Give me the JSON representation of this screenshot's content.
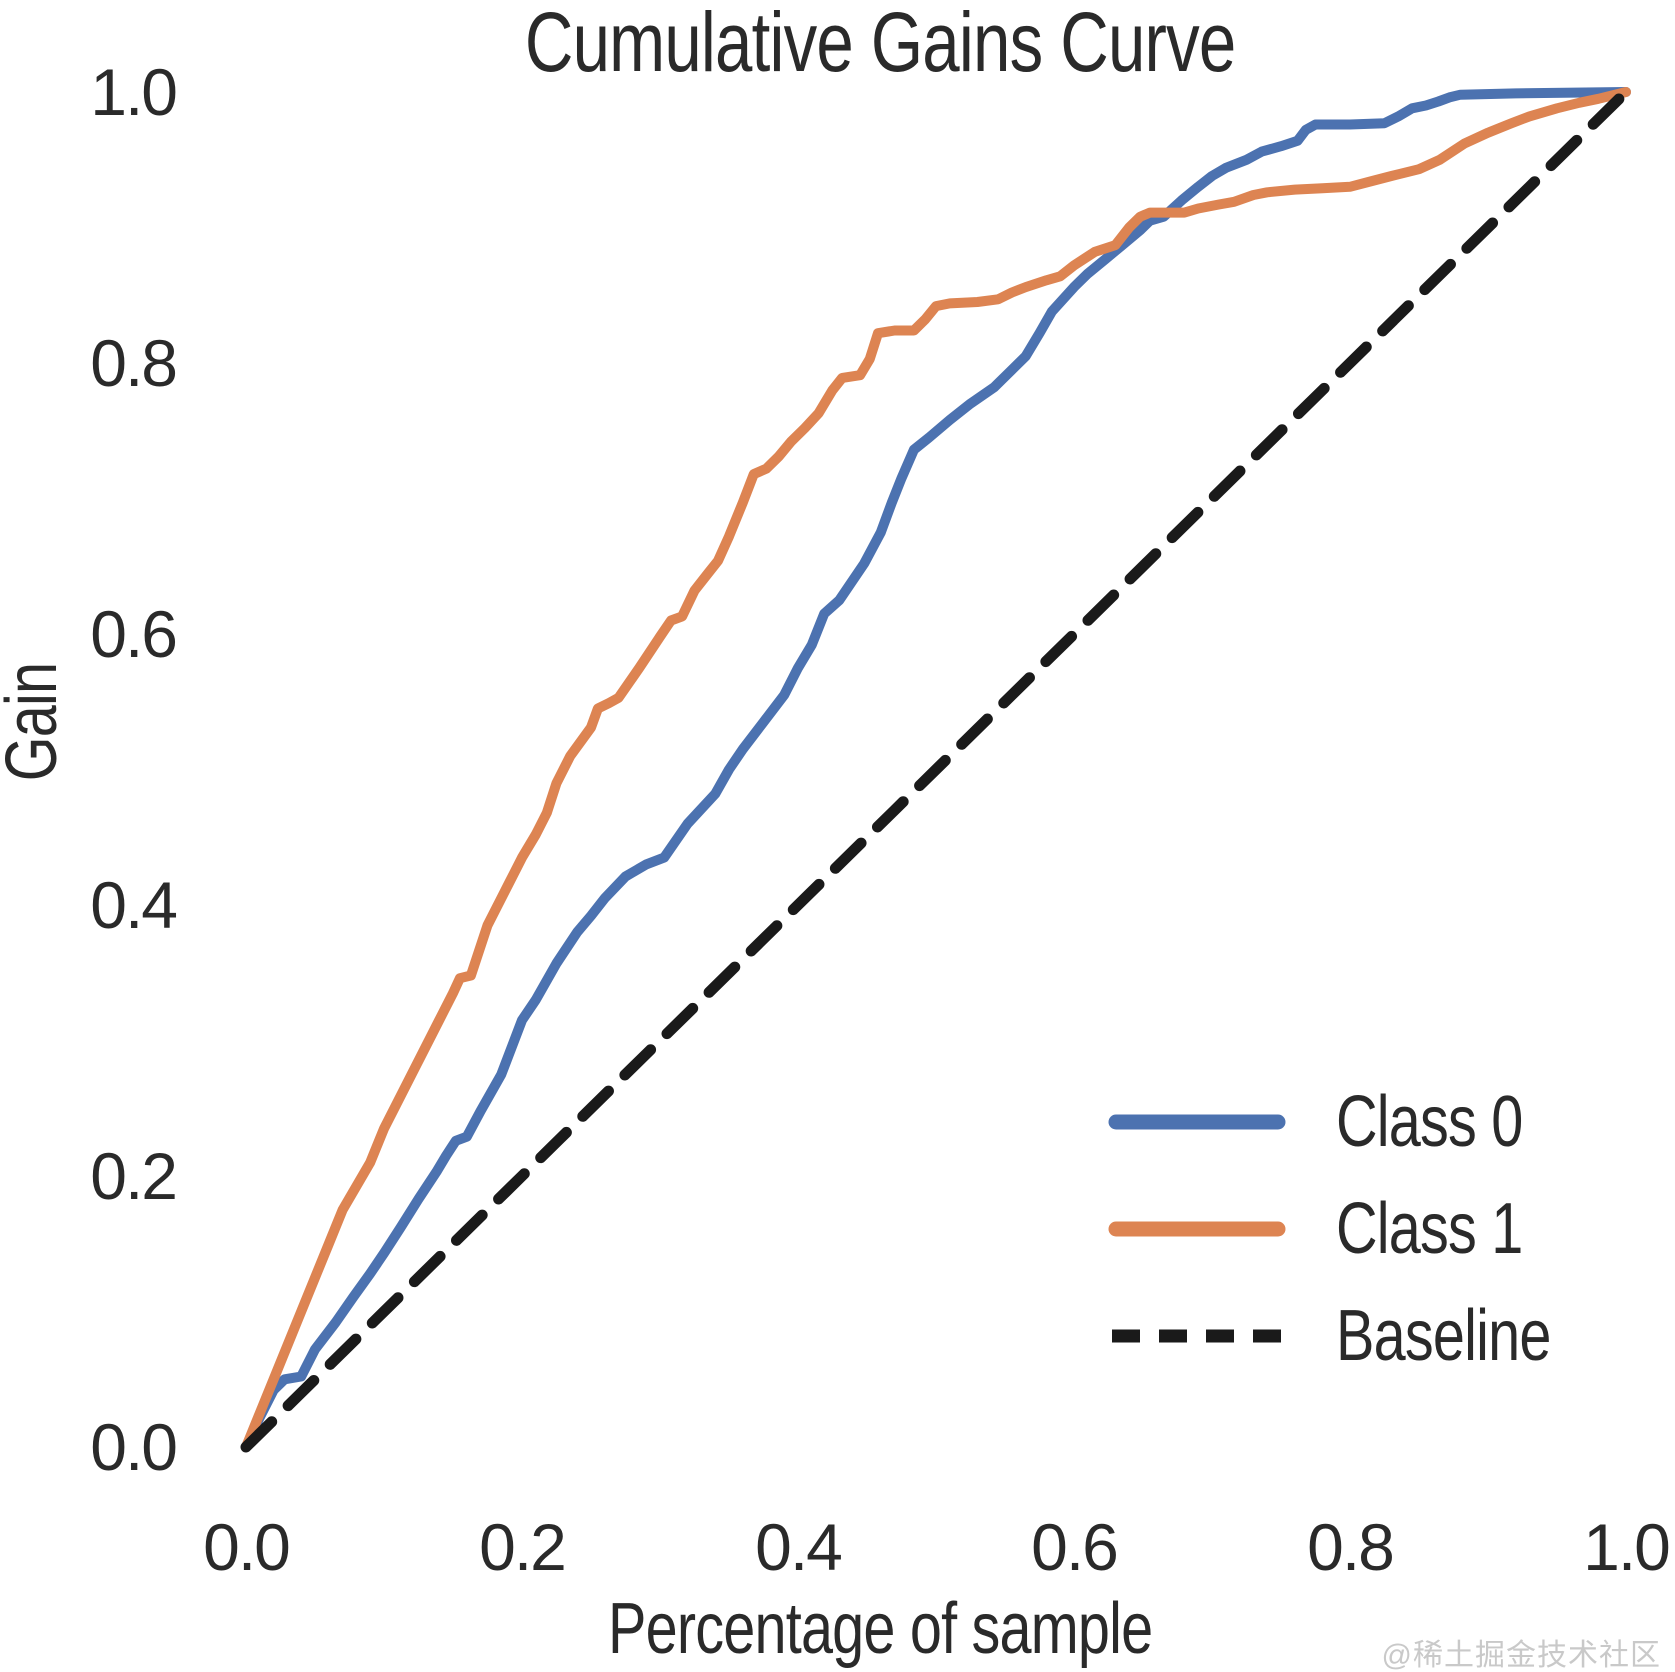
{
  "title": "Cumulative Gains Curve",
  "watermark": "@稀土掘金技术社区",
  "colors": {
    "class0": "#4C72B0",
    "class1": "#DD8452",
    "baseline": "#1a1a1a",
    "text": "#2a2a2a",
    "watermark": "#c9c9c9",
    "background": "#ffffff"
  },
  "chart_data": {
    "type": "line",
    "title": "Cumulative Gains Curve",
    "xlabel": "Percentage of sample",
    "ylabel": "Gain",
    "xlim": [
      0.0,
      1.0
    ],
    "ylim": [
      0.0,
      1.0
    ],
    "xticks": [
      0.0,
      0.2,
      0.4,
      0.6,
      0.8,
      1.0
    ],
    "yticks": [
      0.0,
      0.2,
      0.4,
      0.6,
      0.8,
      1.0
    ],
    "grid": false,
    "spines": false,
    "legend_position": "lower right",
    "series": [
      {
        "id": "class0",
        "name": "Class 0",
        "color": "#4C72B0",
        "style": "solid",
        "width": 10,
        "points": [
          [
            0,
            0
          ],
          [
            0.01,
            0.022
          ],
          [
            0.02,
            0.042
          ],
          [
            0.028,
            0.05
          ],
          [
            0.04,
            0.052
          ],
          [
            0.05,
            0.072
          ],
          [
            0.065,
            0.092
          ],
          [
            0.078,
            0.111
          ],
          [
            0.09,
            0.128
          ],
          [
            0.1,
            0.143
          ],
          [
            0.112,
            0.162
          ],
          [
            0.125,
            0.183
          ],
          [
            0.138,
            0.203
          ],
          [
            0.145,
            0.215
          ],
          [
            0.152,
            0.226
          ],
          [
            0.16,
            0.229
          ],
          [
            0.17,
            0.248
          ],
          [
            0.185,
            0.275
          ],
          [
            0.2,
            0.315
          ],
          [
            0.21,
            0.33
          ],
          [
            0.225,
            0.357
          ],
          [
            0.24,
            0.38
          ],
          [
            0.25,
            0.392
          ],
          [
            0.26,
            0.405
          ],
          [
            0.275,
            0.421
          ],
          [
            0.29,
            0.43
          ],
          [
            0.303,
            0.435
          ],
          [
            0.32,
            0.46
          ],
          [
            0.34,
            0.482
          ],
          [
            0.35,
            0.5
          ],
          [
            0.36,
            0.515
          ],
          [
            0.375,
            0.535
          ],
          [
            0.39,
            0.555
          ],
          [
            0.4,
            0.575
          ],
          [
            0.41,
            0.592
          ],
          [
            0.419,
            0.615
          ],
          [
            0.43,
            0.625
          ],
          [
            0.448,
            0.652
          ],
          [
            0.46,
            0.675
          ],
          [
            0.468,
            0.697
          ],
          [
            0.475,
            0.715
          ],
          [
            0.484,
            0.736
          ],
          [
            0.495,
            0.745
          ],
          [
            0.51,
            0.758
          ],
          [
            0.525,
            0.77
          ],
          [
            0.542,
            0.782
          ],
          [
            0.555,
            0.795
          ],
          [
            0.565,
            0.805
          ],
          [
            0.575,
            0.822
          ],
          [
            0.584,
            0.838
          ],
          [
            0.6,
            0.856
          ],
          [
            0.61,
            0.866
          ],
          [
            0.622,
            0.876
          ],
          [
            0.635,
            0.887
          ],
          [
            0.648,
            0.898
          ],
          [
            0.655,
            0.905
          ],
          [
            0.665,
            0.908
          ],
          [
            0.678,
            0.92
          ],
          [
            0.69,
            0.93
          ],
          [
            0.7,
            0.938
          ],
          [
            0.71,
            0.944
          ],
          [
            0.725,
            0.95
          ],
          [
            0.736,
            0.956
          ],
          [
            0.75,
            0.96
          ],
          [
            0.762,
            0.964
          ],
          [
            0.768,
            0.972
          ],
          [
            0.775,
            0.976
          ],
          [
            0.8,
            0.976
          ],
          [
            0.825,
            0.977
          ],
          [
            0.835,
            0.982
          ],
          [
            0.845,
            0.988
          ],
          [
            0.855,
            0.99
          ],
          [
            0.864,
            0.993
          ],
          [
            0.872,
            0.996
          ],
          [
            0.88,
            0.998
          ],
          [
            0.92,
            0.999
          ],
          [
            1,
            1
          ]
        ]
      },
      {
        "id": "class1",
        "name": "Class 1",
        "color": "#DD8452",
        "style": "solid",
        "width": 10,
        "points": [
          [
            0,
            0
          ],
          [
            0.02,
            0.05
          ],
          [
            0.04,
            0.1
          ],
          [
            0.06,
            0.15
          ],
          [
            0.07,
            0.175
          ],
          [
            0.09,
            0.21
          ],
          [
            0.1,
            0.235
          ],
          [
            0.12,
            0.275
          ],
          [
            0.14,
            0.315
          ],
          [
            0.15,
            0.335
          ],
          [
            0.155,
            0.346
          ],
          [
            0.163,
            0.348
          ],
          [
            0.175,
            0.385
          ],
          [
            0.19,
            0.415
          ],
          [
            0.2,
            0.435
          ],
          [
            0.21,
            0.452
          ],
          [
            0.218,
            0.468
          ],
          [
            0.225,
            0.49
          ],
          [
            0.235,
            0.51
          ],
          [
            0.25,
            0.531
          ],
          [
            0.255,
            0.545
          ],
          [
            0.263,
            0.549
          ],
          [
            0.27,
            0.553
          ],
          [
            0.285,
            0.575
          ],
          [
            0.3,
            0.598
          ],
          [
            0.308,
            0.61
          ],
          [
            0.316,
            0.613
          ],
          [
            0.325,
            0.632
          ],
          [
            0.335,
            0.645
          ],
          [
            0.342,
            0.654
          ],
          [
            0.35,
            0.672
          ],
          [
            0.36,
            0.697
          ],
          [
            0.368,
            0.718
          ],
          [
            0.377,
            0.722
          ],
          [
            0.386,
            0.731
          ],
          [
            0.395,
            0.742
          ],
          [
            0.405,
            0.752
          ],
          [
            0.415,
            0.763
          ],
          [
            0.425,
            0.78
          ],
          [
            0.432,
            0.789
          ],
          [
            0.445,
            0.791
          ],
          [
            0.452,
            0.803
          ],
          [
            0.458,
            0.822
          ],
          [
            0.47,
            0.824
          ],
          [
            0.484,
            0.824
          ],
          [
            0.492,
            0.832
          ],
          [
            0.5,
            0.842
          ],
          [
            0.51,
            0.844
          ],
          [
            0.53,
            0.845
          ],
          [
            0.545,
            0.847
          ],
          [
            0.555,
            0.852
          ],
          [
            0.565,
            0.856
          ],
          [
            0.58,
            0.861
          ],
          [
            0.59,
            0.864
          ],
          [
            0.6,
            0.872
          ],
          [
            0.615,
            0.882
          ],
          [
            0.63,
            0.887
          ],
          [
            0.64,
            0.9
          ],
          [
            0.648,
            0.908
          ],
          [
            0.655,
            0.911
          ],
          [
            0.68,
            0.911
          ],
          [
            0.69,
            0.914
          ],
          [
            0.705,
            0.917
          ],
          [
            0.716,
            0.919
          ],
          [
            0.73,
            0.924
          ],
          [
            0.74,
            0.926
          ],
          [
            0.76,
            0.928
          ],
          [
            0.78,
            0.929
          ],
          [
            0.8,
            0.93
          ],
          [
            0.815,
            0.934
          ],
          [
            0.83,
            0.938
          ],
          [
            0.85,
            0.943
          ],
          [
            0.865,
            0.95
          ],
          [
            0.883,
            0.962
          ],
          [
            0.9,
            0.97
          ],
          [
            0.917,
            0.977
          ],
          [
            0.93,
            0.982
          ],
          [
            0.95,
            0.988
          ],
          [
            0.966,
            0.992
          ],
          [
            0.98,
            0.995
          ],
          [
            1,
            1
          ]
        ]
      },
      {
        "id": "baseline",
        "name": "Baseline",
        "color": "#1a1a1a",
        "style": "dashed",
        "width": 11,
        "dash": "36 23",
        "points": [
          [
            0,
            0
          ],
          [
            1,
            1
          ]
        ]
      }
    ]
  },
  "legend": {
    "items": [
      {
        "label": "Class 0"
      },
      {
        "label": "Class 1"
      },
      {
        "label": "Baseline"
      }
    ]
  }
}
